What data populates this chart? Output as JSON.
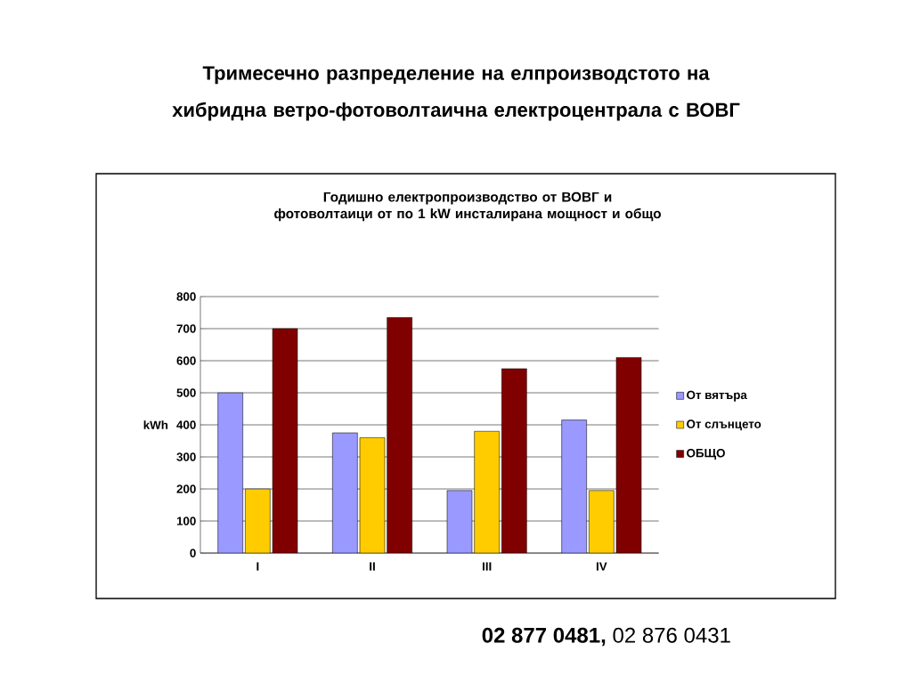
{
  "chart_data": {
    "type": "bar",
    "title": "Тримесечно разпределение на елпроизводстото на хибридна ветро-фотоволтаична електроцентрала с ВОВГ",
    "subtitle": "Годишно електропроизводство от ВОВГ и фотоволтаици от по 1 kW инсталирана мощност и общо",
    "ylabel": "kWh",
    "categories": [
      "I",
      "II",
      "III",
      "IV"
    ],
    "series": [
      {
        "name": "От вятъра",
        "color": "#9999ff",
        "values": [
          500,
          375,
          195,
          415
        ]
      },
      {
        "name": "От слънцето",
        "color": "#ffcc00",
        "values": [
          200,
          360,
          380,
          195
        ]
      },
      {
        "name": "ОБЩО",
        "color": "#800000",
        "values": [
          700,
          735,
          575,
          610
        ]
      }
    ],
    "ylim": [
      0,
      800
    ],
    "yticks": [
      0,
      100,
      200,
      300,
      400,
      500,
      600,
      700,
      800
    ],
    "grid": "y",
    "legend": "right",
    "annotations": [
      "**02 877 0481,** 02 876 0431"
    ]
  }
}
